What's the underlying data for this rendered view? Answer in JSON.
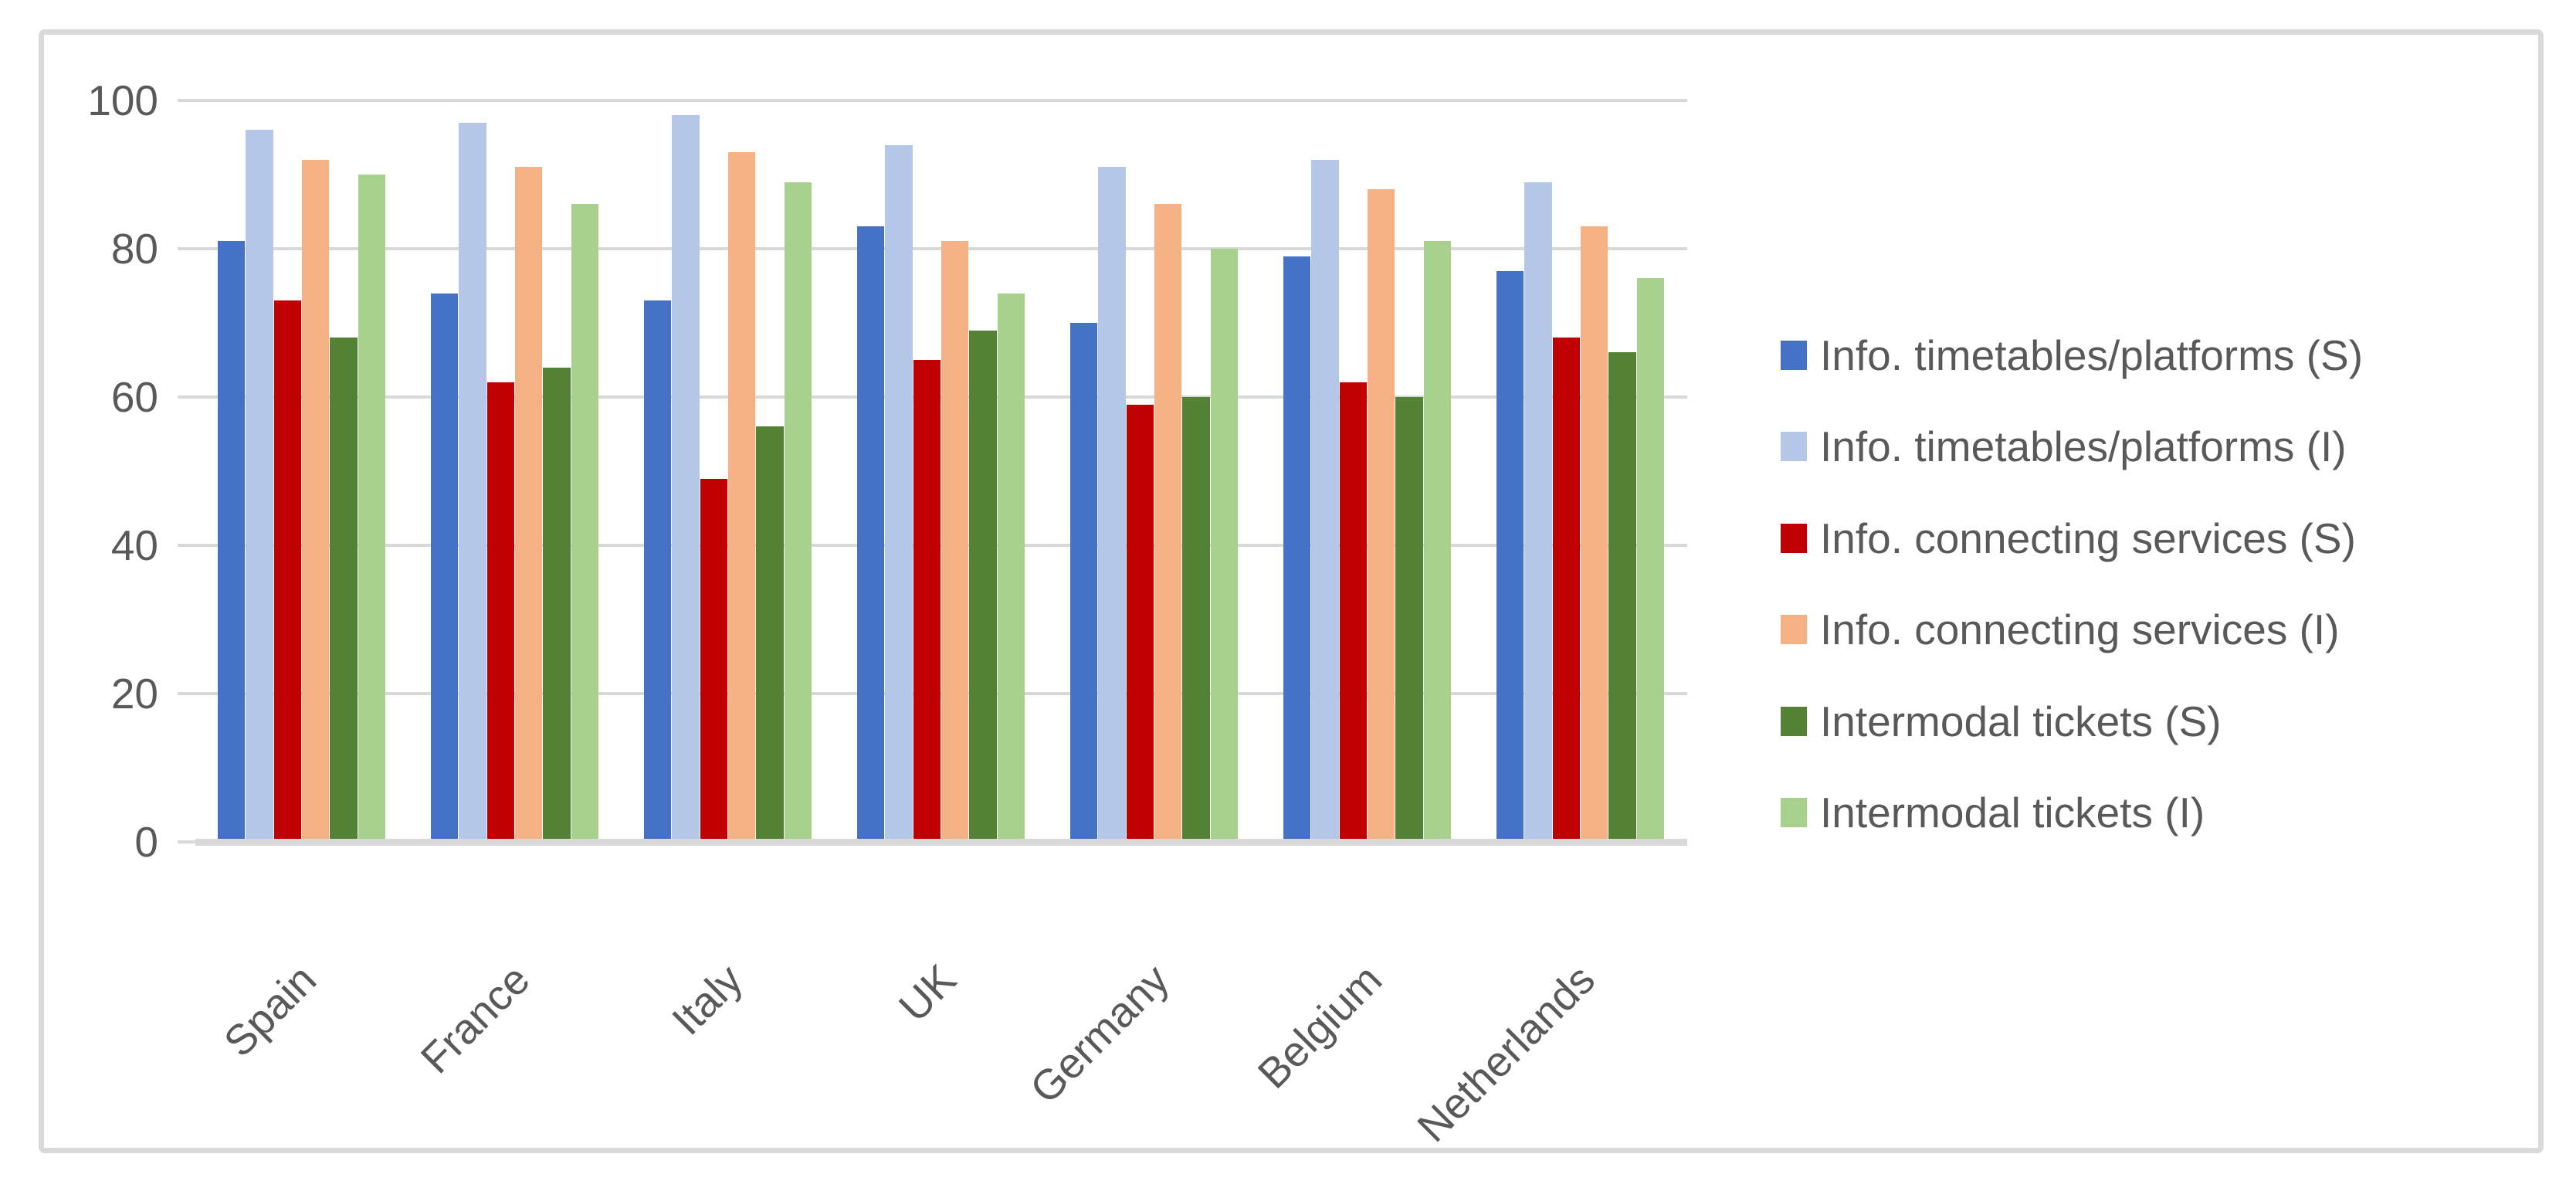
{
  "colors": {
    "background": "#FFFFFF",
    "frame_border": "#D9D9D9",
    "gridline": "#D9D9D9",
    "axis_line": "#D9D9D9",
    "text": "#595959"
  },
  "chart_data": {
    "type": "bar",
    "title": "",
    "categories": [
      "Spain",
      "France",
      "Italy",
      "UK",
      "Germany",
      "Belgium",
      "Netherlands"
    ],
    "series": [
      {
        "name": "Info. timetables/platforms (S)",
        "color": "#4472C4",
        "values": [
          81,
          74,
          73,
          83,
          70,
          79,
          77
        ]
      },
      {
        "name": "Info. timetables/platforms (I)",
        "color": "#B4C7E7",
        "values": [
          96,
          97,
          98,
          94,
          91,
          92,
          89
        ]
      },
      {
        "name": "Info. connecting services (S)",
        "color": "#C00000",
        "values": [
          73,
          62,
          49,
          65,
          59,
          62,
          68
        ]
      },
      {
        "name": "Info. connecting services (I)",
        "color": "#F4B183",
        "values": [
          92,
          91,
          93,
          81,
          86,
          88,
          83
        ]
      },
      {
        "name": "Intermodal tickets (S)",
        "color": "#548235",
        "values": [
          68,
          64,
          56,
          69,
          60,
          60,
          66
        ]
      },
      {
        "name": "Intermodal tickets (I)",
        "color": "#A9D18E",
        "values": [
          90,
          86,
          89,
          74,
          80,
          81,
          76
        ]
      }
    ],
    "xlabel": "",
    "ylabel": "",
    "ylim": [
      0,
      100
    ],
    "yticks": [
      0,
      20,
      40,
      60,
      80,
      100
    ],
    "grid": "horizontal",
    "legend_position": "right"
  }
}
